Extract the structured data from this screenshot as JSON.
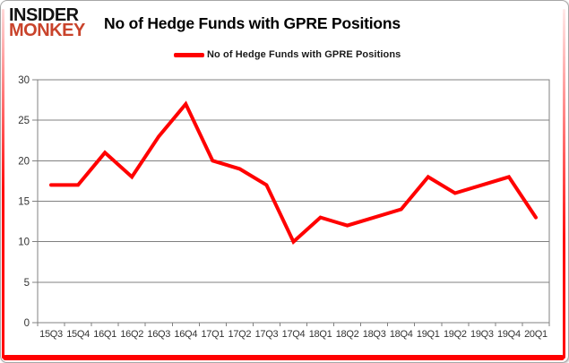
{
  "logo": {
    "line1": "INSIDER",
    "line2": "MONKEY"
  },
  "header": {
    "title": "No of Hedge Funds with GPRE Positions"
  },
  "legend": {
    "label": "No of Hedge Funds with GPRE Positions"
  },
  "colors": {
    "series_line": "#ff0000",
    "logo_accent": "#c9432b",
    "grid": "#808080",
    "frame_accent": "#ff0000"
  },
  "chart_data": {
    "type": "line",
    "title": "No of Hedge Funds with GPRE Positions",
    "categories": [
      "15Q3",
      "15Q4",
      "16Q1",
      "16Q2",
      "16Q3",
      "16Q4",
      "17Q1",
      "17Q2",
      "17Q3",
      "17Q4",
      "18Q1",
      "18Q2",
      "18Q3",
      "18Q4",
      "19Q1",
      "19Q2",
      "19Q3",
      "19Q4",
      "20Q1"
    ],
    "series": [
      {
        "name": "No of Hedge Funds with GPRE Positions",
        "color": "#ff0000",
        "values": [
          17,
          17,
          21,
          18,
          23,
          27,
          20,
          19,
          17,
          10,
          13,
          12,
          13,
          14,
          18,
          16,
          17,
          18,
          13
        ]
      }
    ],
    "ylim": [
      0,
      30
    ],
    "yticks": [
      0,
      5,
      10,
      15,
      20,
      25,
      30
    ],
    "grid": true,
    "legend_position": "top-center"
  }
}
